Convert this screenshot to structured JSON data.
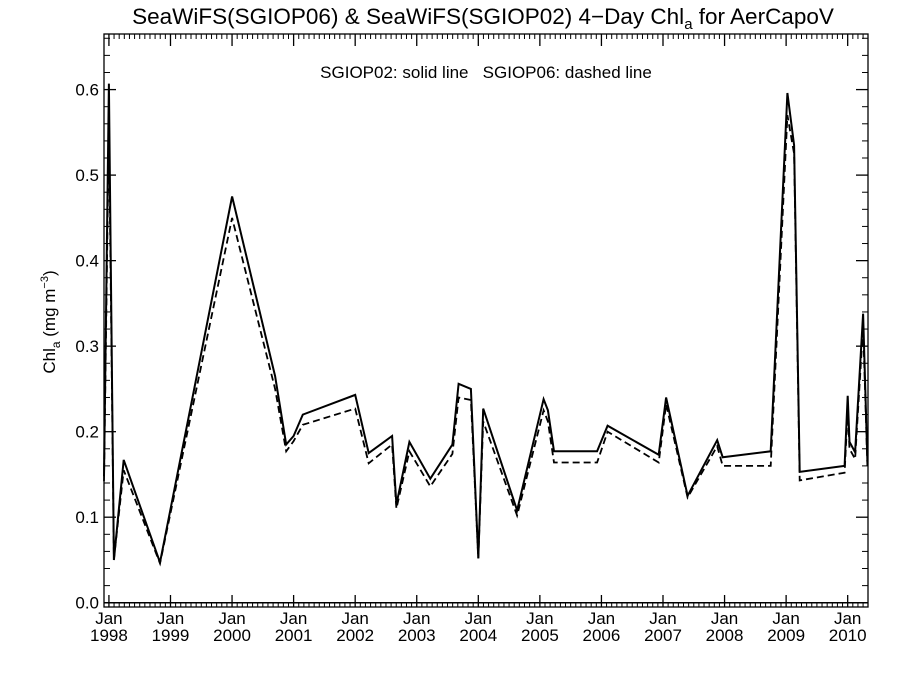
{
  "title": {
    "main": "SeaWiFS(SGIOP06) & SeaWiFS(SGIOP02) 4−Day Chl",
    "sub": "a",
    "suffix": " for AerCapoV"
  },
  "ylabel": {
    "main": "Chl",
    "sub": "a",
    "units": " (mg m",
    "sup": "−3",
    "close": ")"
  },
  "legend_text": "SGIOP02: solid line   SGIOP06: dashed line",
  "chart_data": {
    "type": "line",
    "title": "SeaWiFS(SGIOP06) & SeaWiFS(SGIOP02) 4−Day Chla for AerCapoV",
    "xlabel": "",
    "ylabel": "Chla (mg m−3)",
    "xlim": [
      1997.92,
      2010.33
    ],
    "ylim": [
      -0.005,
      0.665
    ],
    "grid": false,
    "legend": "top-center",
    "x_ticks": [
      {
        "value": 1998,
        "month": "Jan",
        "year": "1998"
      },
      {
        "value": 1999,
        "month": "Jan",
        "year": "1999"
      },
      {
        "value": 2000,
        "month": "Jan",
        "year": "2000"
      },
      {
        "value": 2001,
        "month": "Jan",
        "year": "2001"
      },
      {
        "value": 2002,
        "month": "Jan",
        "year": "2002"
      },
      {
        "value": 2003,
        "month": "Jan",
        "year": "2003"
      },
      {
        "value": 2004,
        "month": "Jan",
        "year": "2004"
      },
      {
        "value": 2005,
        "month": "Jan",
        "year": "2005"
      },
      {
        "value": 2006,
        "month": "Jan",
        "year": "2006"
      },
      {
        "value": 2007,
        "month": "Jan",
        "year": "2007"
      },
      {
        "value": 2008,
        "month": "Jan",
        "year": "2008"
      },
      {
        "value": 2009,
        "month": "Jan",
        "year": "2009"
      },
      {
        "value": 2010,
        "month": "Jan",
        "year": "2010"
      }
    ],
    "y_ticks": [
      {
        "value": 0.0,
        "label": "0.0"
      },
      {
        "value": 0.1,
        "label": "0.1"
      },
      {
        "value": 0.2,
        "label": "0.2"
      },
      {
        "value": 0.3,
        "label": "0.3"
      },
      {
        "value": 0.4,
        "label": "0.4"
      },
      {
        "value": 0.5,
        "label": "0.5"
      },
      {
        "value": 0.6,
        "label": "0.6"
      }
    ],
    "series": [
      {
        "name": "SGIOP02",
        "style": "solid",
        "color": "#000000",
        "points": [
          [
            1997.92,
            0.148
          ],
          [
            1998.0,
            0.607
          ],
          [
            1998.08,
            0.05
          ],
          [
            1998.24,
            0.167
          ],
          [
            1998.83,
            0.047
          ],
          [
            2000.0,
            0.475
          ],
          [
            2000.7,
            0.265
          ],
          [
            2000.88,
            0.185
          ],
          [
            2001.0,
            0.195
          ],
          [
            2001.15,
            0.22
          ],
          [
            2002.0,
            0.243
          ],
          [
            2002.22,
            0.175
          ],
          [
            2002.6,
            0.195
          ],
          [
            2002.67,
            0.115
          ],
          [
            2002.88,
            0.188
          ],
          [
            2003.22,
            0.145
          ],
          [
            2003.58,
            0.185
          ],
          [
            2003.68,
            0.256
          ],
          [
            2003.88,
            0.25
          ],
          [
            2004.0,
            0.052
          ],
          [
            2004.08,
            0.227
          ],
          [
            2004.63,
            0.108
          ],
          [
            2005.06,
            0.238
          ],
          [
            2005.13,
            0.225
          ],
          [
            2005.23,
            0.177
          ],
          [
            2005.93,
            0.177
          ],
          [
            2006.1,
            0.207
          ],
          [
            2006.93,
            0.173
          ],
          [
            2007.05,
            0.24
          ],
          [
            2007.4,
            0.125
          ],
          [
            2007.88,
            0.19
          ],
          [
            2007.97,
            0.17
          ],
          [
            2008.75,
            0.177
          ],
          [
            2009.02,
            0.596
          ],
          [
            2009.13,
            0.535
          ],
          [
            2009.22,
            0.153
          ],
          [
            2009.95,
            0.16
          ],
          [
            2010.0,
            0.242
          ],
          [
            2010.03,
            0.188
          ],
          [
            2010.12,
            0.176
          ],
          [
            2010.25,
            0.338
          ],
          [
            2010.32,
            0.165
          ]
        ]
      },
      {
        "name": "SGIOP06",
        "style": "dashed",
        "color": "#000000",
        "points": [
          [
            1997.92,
            0.142
          ],
          [
            1998.0,
            0.56
          ],
          [
            1998.08,
            0.051
          ],
          [
            1998.24,
            0.155
          ],
          [
            1998.83,
            0.046
          ],
          [
            2000.0,
            0.45
          ],
          [
            2000.7,
            0.25
          ],
          [
            2000.88,
            0.177
          ],
          [
            2001.0,
            0.189
          ],
          [
            2001.15,
            0.208
          ],
          [
            2002.0,
            0.227
          ],
          [
            2002.22,
            0.163
          ],
          [
            2002.6,
            0.185
          ],
          [
            2002.67,
            0.11
          ],
          [
            2002.88,
            0.177
          ],
          [
            2003.22,
            0.136
          ],
          [
            2003.58,
            0.174
          ],
          [
            2003.68,
            0.24
          ],
          [
            2003.88,
            0.237
          ],
          [
            2004.0,
            0.052
          ],
          [
            2004.08,
            0.212
          ],
          [
            2004.63,
            0.102
          ],
          [
            2005.06,
            0.225
          ],
          [
            2005.13,
            0.212
          ],
          [
            2005.23,
            0.164
          ],
          [
            2005.93,
            0.164
          ],
          [
            2006.1,
            0.2
          ],
          [
            2006.93,
            0.164
          ],
          [
            2007.05,
            0.232
          ],
          [
            2007.4,
            0.123
          ],
          [
            2007.88,
            0.183
          ],
          [
            2007.97,
            0.16
          ],
          [
            2008.75,
            0.16
          ],
          [
            2009.02,
            0.57
          ],
          [
            2009.13,
            0.525
          ],
          [
            2009.22,
            0.143
          ],
          [
            2009.95,
            0.152
          ],
          [
            2010.0,
            0.225
          ],
          [
            2010.03,
            0.18
          ],
          [
            2010.12,
            0.168
          ],
          [
            2010.25,
            0.323
          ],
          [
            2010.32,
            0.16
          ]
        ]
      }
    ]
  }
}
